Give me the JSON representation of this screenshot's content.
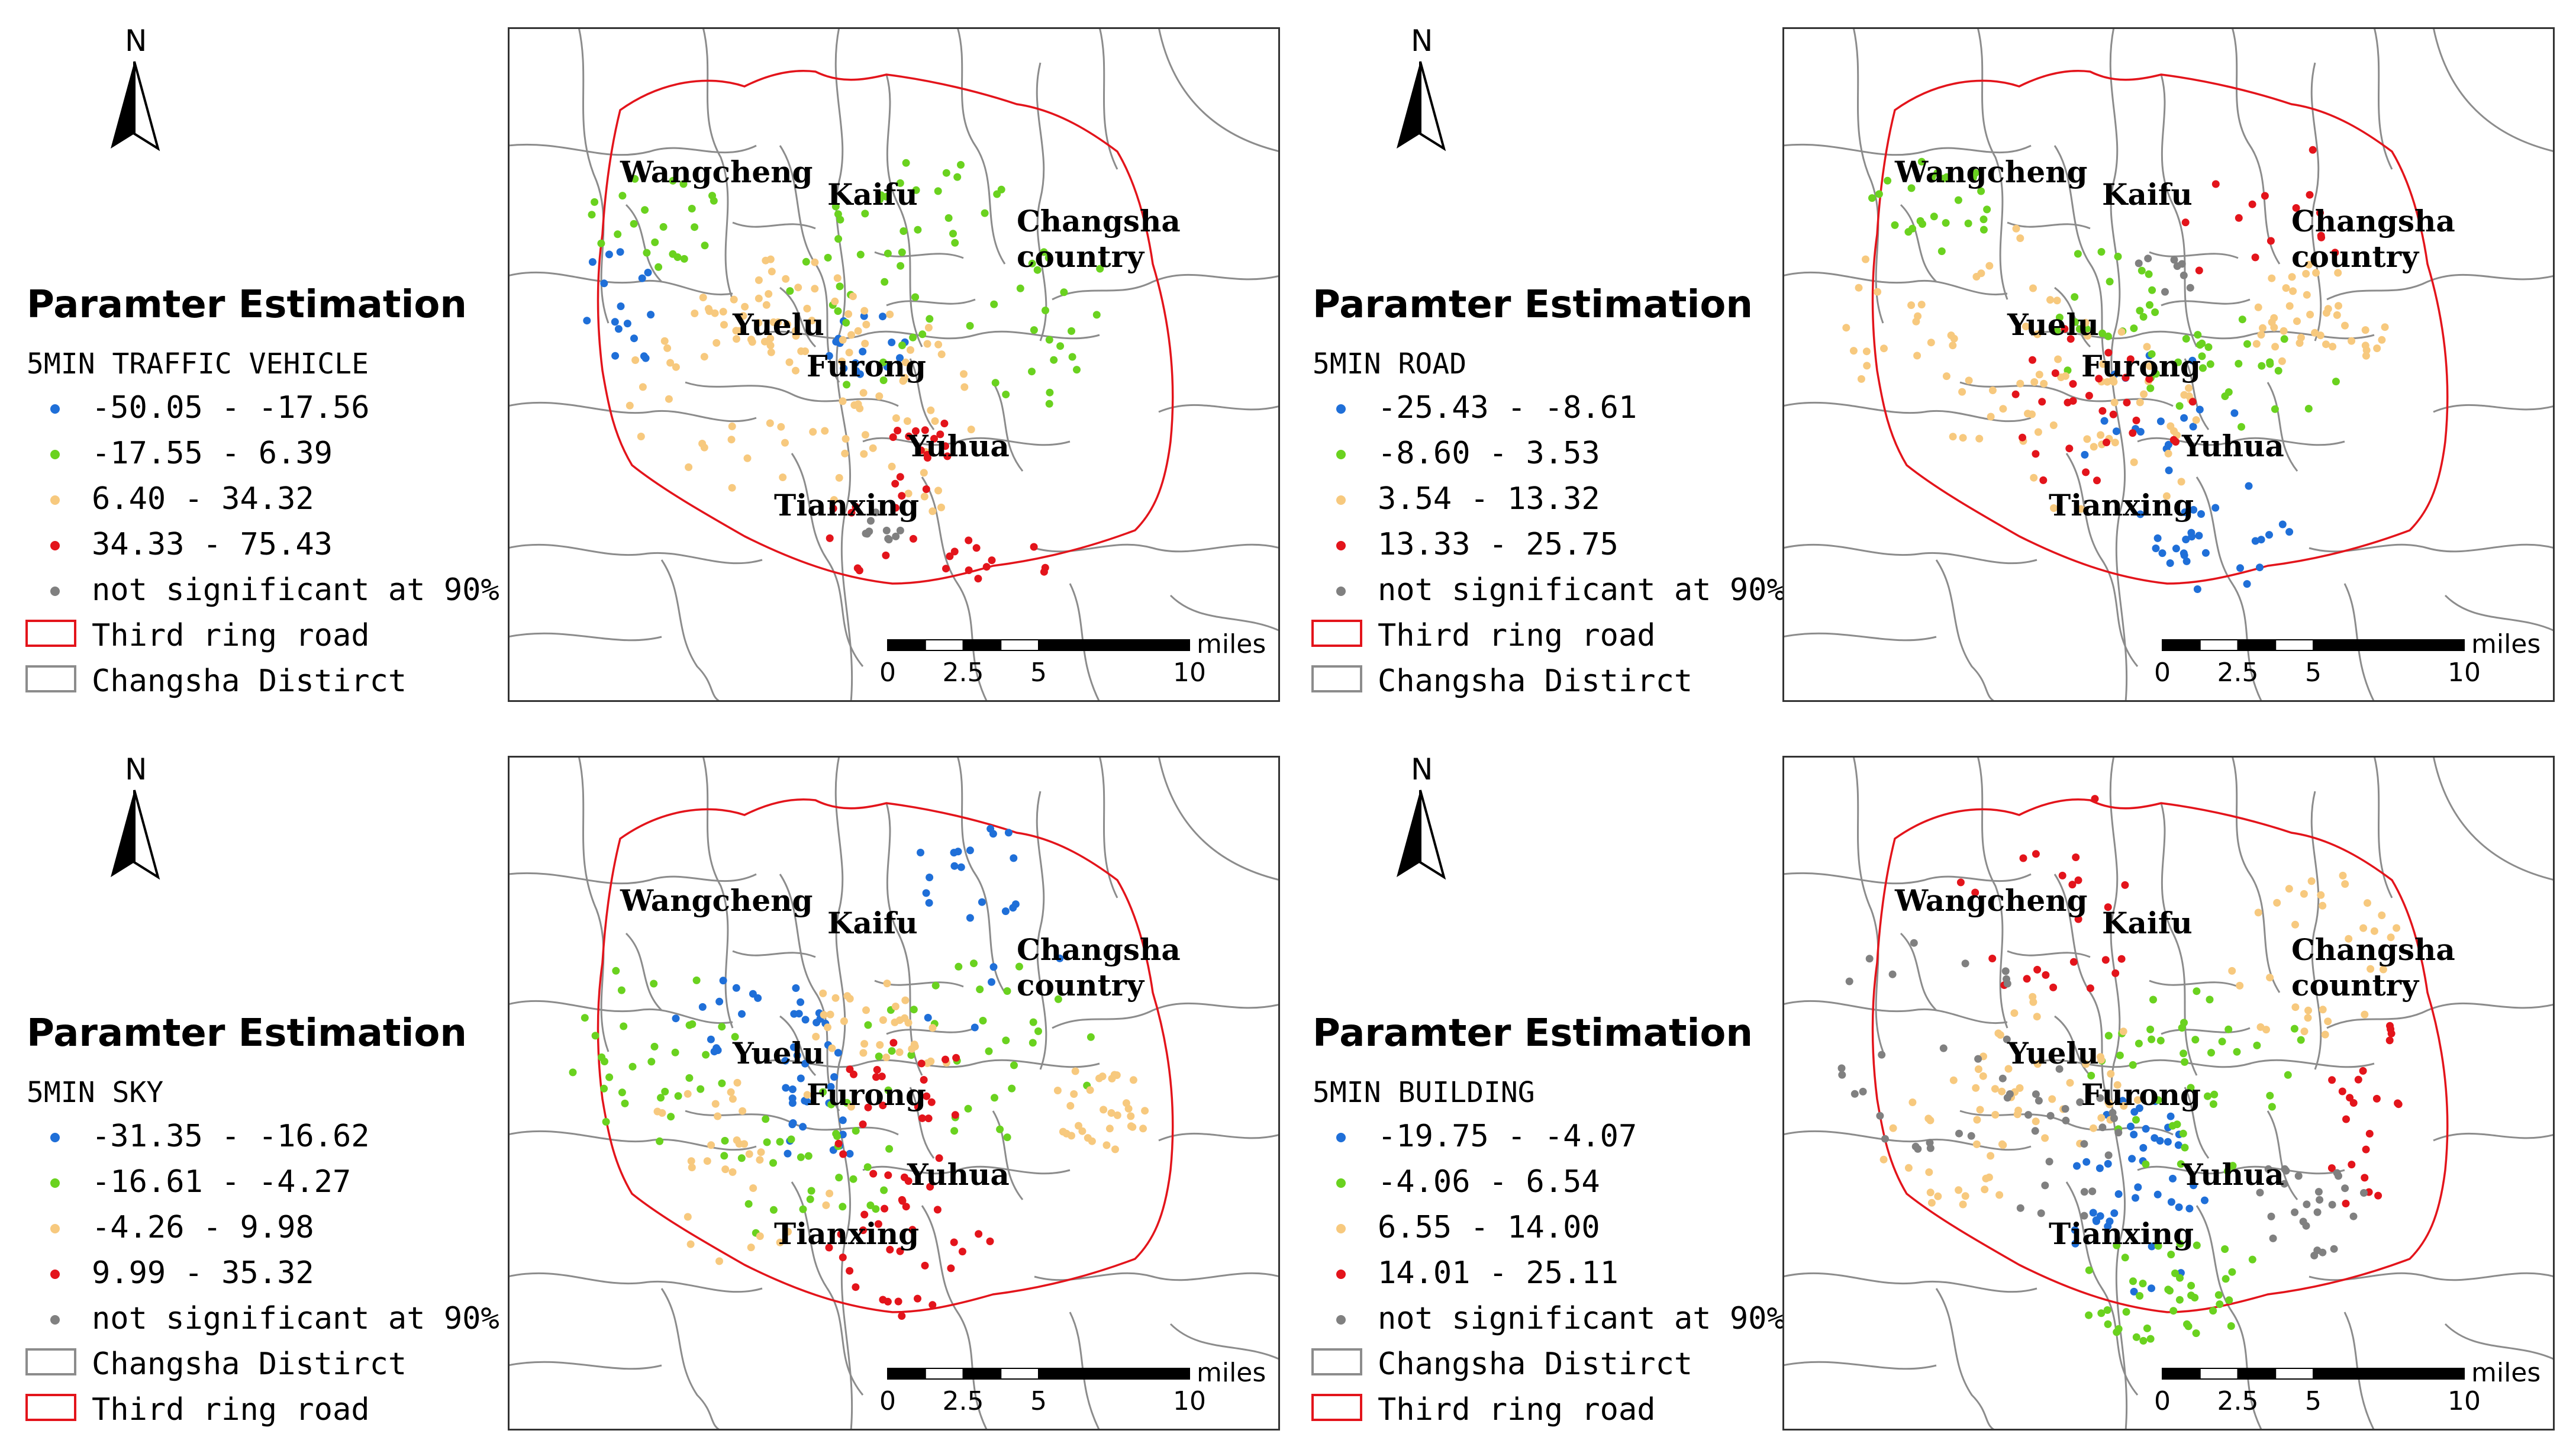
{
  "panels": [
    {
      "id": "traffic-vehicle",
      "heading": "Paramter Estimation",
      "field": "5MIN TRAFFIC VEHICLE",
      "classes": [
        {
          "label": "-50.05 - -17.56",
          "color": "#1f6fd8"
        },
        {
          "label": "-17.55 - 6.39",
          "color": "#6ad21f"
        },
        {
          "label": "6.40 - 34.32",
          "color": "#f7c97e"
        },
        {
          "label": "34.33 - 75.43",
          "color": "#e3141b"
        },
        {
          "label": "not significant at 90%",
          "color": "#808080"
        }
      ],
      "boundaries": [
        {
          "label": "Third ring road",
          "type": "ring"
        },
        {
          "label": "Changsha Distirct",
          "type": "district"
        }
      ],
      "points": {
        "blue": 32,
        "green": 90,
        "orange": 115,
        "red": 38,
        "gray": 10
      }
    },
    {
      "id": "road",
      "heading": "Paramter Estimation",
      "field": "5MIN ROAD",
      "classes": [
        {
          "label": "-25.43 - -8.61",
          "color": "#1f6fd8"
        },
        {
          "label": "-8.60 - 3.53",
          "color": "#6ad21f"
        },
        {
          "label": "3.54 - 13.32",
          "color": "#f7c97e"
        },
        {
          "label": "13.33 - 25.75",
          "color": "#e3141b"
        },
        {
          "label": "not significant at 90%",
          "color": "#808080"
        }
      ],
      "boundaries": [
        {
          "label": "Third ring road",
          "type": "ring"
        },
        {
          "label": "Changsha Distirct",
          "type": "district"
        }
      ],
      "points": {
        "blue": 45,
        "green": 75,
        "orange": 125,
        "red": 45,
        "gray": 8
      }
    },
    {
      "id": "sky",
      "heading": "Paramter Estimation",
      "field": "5MIN SKY",
      "classes": [
        {
          "label": "-31.35 - -16.62",
          "color": "#1f6fd8"
        },
        {
          "label": "-16.61 - -4.27",
          "color": "#6ad21f"
        },
        {
          "label": "-4.26 - 9.98",
          "color": "#f7c97e"
        },
        {
          "label": "9.99 - 35.32",
          "color": "#e3141b"
        },
        {
          "label": "not significant at 90%",
          "color": "#808080"
        }
      ],
      "boundaries": [
        {
          "label": "Changsha Distirct",
          "type": "district"
        },
        {
          "label": "Third ring road",
          "type": "ring"
        }
      ],
      "points": {
        "blue": 70,
        "green": 95,
        "orange": 95,
        "red": 55,
        "gray": 0
      }
    },
    {
      "id": "building",
      "heading": "Paramter Estimation",
      "field": "5MIN BUILDING",
      "classes": [
        {
          "label": "-19.75 - -4.07",
          "color": "#1f6fd8"
        },
        {
          "label": "-4.06 - 6.54",
          "color": "#6ad21f"
        },
        {
          "label": "6.55 - 14.00",
          "color": "#f7c97e"
        },
        {
          "label": "14.01 - 25.11",
          "color": "#e3141b"
        },
        {
          "label": "not significant at 90%",
          "color": "#808080"
        }
      ],
      "boundaries": [
        {
          "label": "Changsha Distirct",
          "type": "district"
        },
        {
          "label": "Third ring road",
          "type": "ring"
        }
      ],
      "points": {
        "blue": 45,
        "green": 85,
        "orange": 95,
        "red": 45,
        "gray": 75
      }
    }
  ],
  "place_names": [
    "Wangcheng",
    "Kaifu",
    "Changsha",
    "country",
    "Yuelu",
    "Furong",
    "Yuhua",
    "Tianxing"
  ],
  "north_label": "N",
  "scale_bar": {
    "ticks": [
      "0",
      "2.5",
      "5",
      "10"
    ],
    "unit": "miles"
  },
  "colors": {
    "ring_road": "#e3141b",
    "district_line": "#8c8c8c",
    "frame": "#333333"
  }
}
